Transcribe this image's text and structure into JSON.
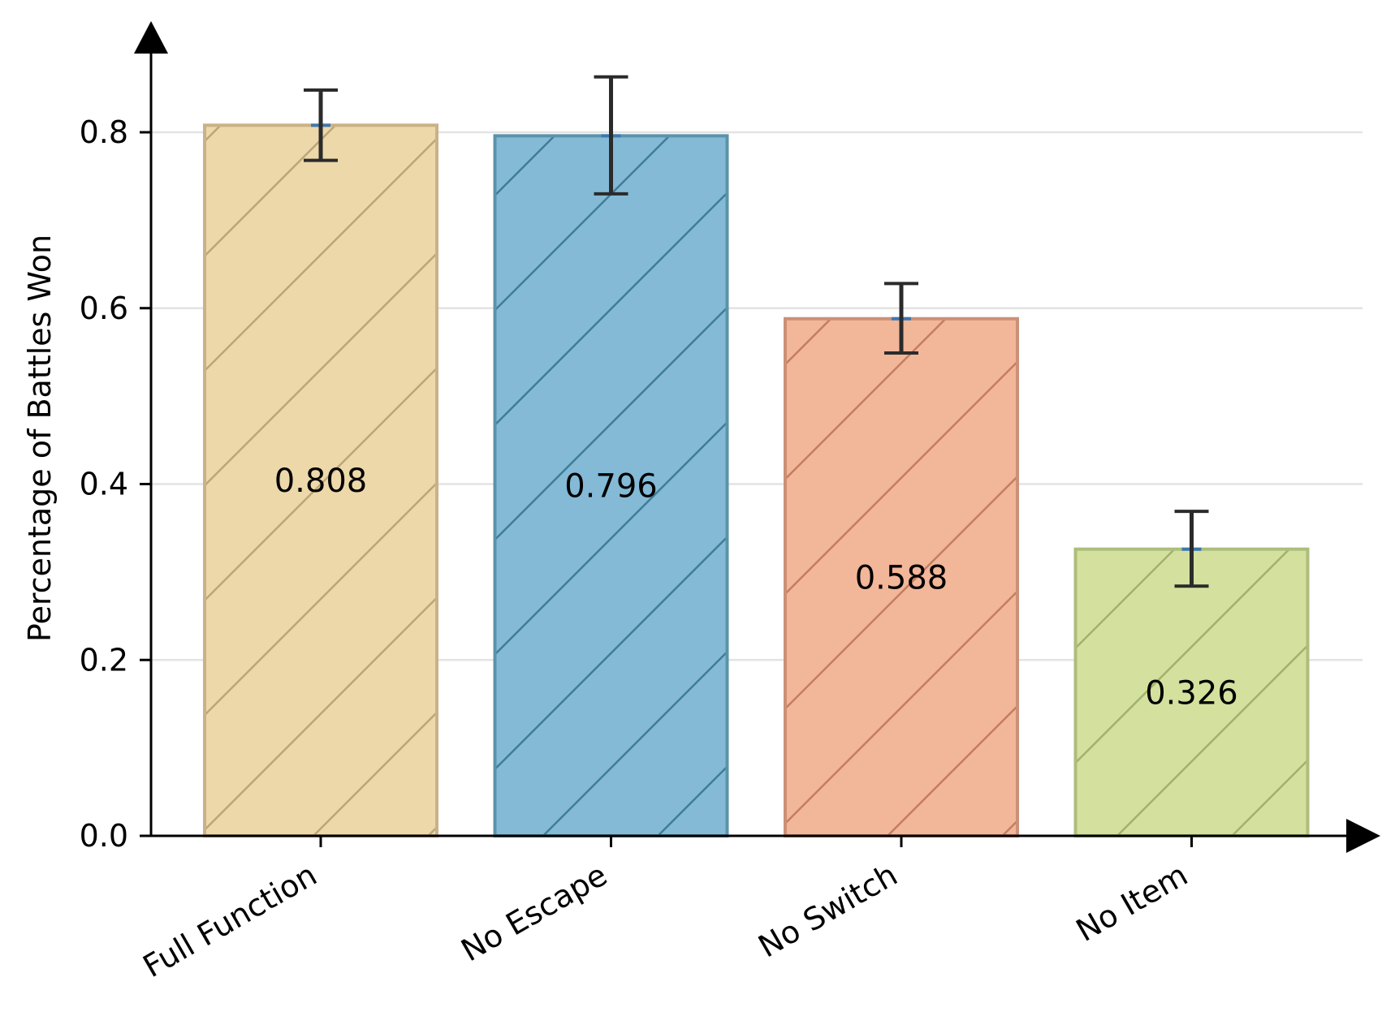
{
  "chart_data": {
    "type": "bar",
    "title": "",
    "xlabel": "",
    "ylabel": "Percentage of Battles Won",
    "categories": [
      "Full Function",
      "No Escape",
      "No Switch",
      "No Item"
    ],
    "values": [
      0.808,
      0.796,
      0.588,
      0.326
    ],
    "value_labels": [
      "0.808",
      "0.796",
      "0.588",
      "0.326"
    ],
    "error_low": [
      0.768,
      0.73,
      0.549,
      0.284
    ],
    "error_high": [
      0.848,
      0.863,
      0.628,
      0.369
    ],
    "ylim": [
      0,
      0.9
    ],
    "yticks": [
      0.0,
      0.2,
      0.4,
      0.6,
      0.8
    ],
    "ytick_labels": [
      "0.0",
      "0.2",
      "0.4",
      "0.6",
      "0.8"
    ],
    "grid": "horizontal",
    "legend": "none",
    "hatch": "diagonal",
    "colors": {
      "fills": [
        "#edd8aa",
        "#84bad6",
        "#f2b699",
        "#d4e09e"
      ],
      "edges": [
        "#c9b287",
        "#5b93aa",
        "#cb9077",
        "#adbd7c"
      ],
      "hatch_lines": [
        "#bda57a",
        "#3f7d97",
        "#c47d60",
        "#a2b16e"
      ],
      "error_bar": "#2b2b2b",
      "mean_marker": "#3d78b0",
      "grid": "#e3e3e3",
      "axis": "#000000"
    }
  }
}
